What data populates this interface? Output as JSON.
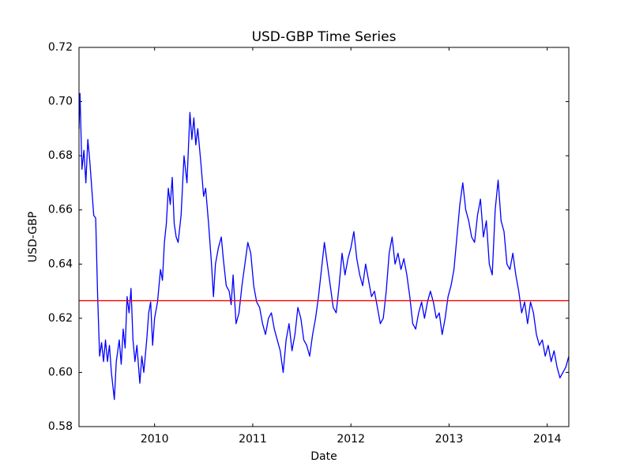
{
  "chart_data": {
    "type": "line",
    "title": "USD-GBP Time Series",
    "x_label": "Date",
    "y_label": "USD-GBP",
    "x": [
      2009.23,
      2009.24,
      2009.26,
      2009.28,
      2009.3,
      2009.32,
      2009.34,
      2009.36,
      2009.38,
      2009.4,
      2009.42,
      2009.44,
      2009.46,
      2009.48,
      2009.5,
      2009.52,
      2009.54,
      2009.56,
      2009.59,
      2009.61,
      2009.64,
      2009.66,
      2009.68,
      2009.7,
      2009.72,
      2009.74,
      2009.76,
      2009.78,
      2009.8,
      2009.82,
      2009.85,
      2009.87,
      2009.89,
      2009.92,
      2009.94,
      2009.96,
      2009.98,
      2010.0,
      2010.03,
      2010.06,
      2010.08,
      2010.1,
      2010.12,
      2010.14,
      2010.16,
      2010.18,
      2010.2,
      2010.22,
      2010.24,
      2010.27,
      2010.3,
      2010.33,
      2010.36,
      2010.38,
      2010.4,
      2010.42,
      2010.44,
      2010.47,
      2010.5,
      2010.52,
      2010.55,
      2010.58,
      2010.6,
      2010.62,
      2010.65,
      2010.68,
      2010.7,
      2010.73,
      2010.76,
      2010.78,
      2010.8,
      2010.83,
      2010.86,
      2010.89,
      2010.92,
      2010.95,
      2010.98,
      2011.01,
      2011.04,
      2011.07,
      2011.1,
      2011.13,
      2011.16,
      2011.19,
      2011.22,
      2011.25,
      2011.28,
      2011.31,
      2011.34,
      2011.37,
      2011.4,
      2011.43,
      2011.46,
      2011.49,
      2011.52,
      2011.55,
      2011.58,
      2011.61,
      2011.64,
      2011.67,
      2011.7,
      2011.73,
      2011.76,
      2011.79,
      2011.82,
      2011.85,
      2011.88,
      2011.91,
      2011.94,
      2011.97,
      2012.0,
      2012.03,
      2012.06,
      2012.09,
      2012.12,
      2012.15,
      2012.18,
      2012.21,
      2012.24,
      2012.27,
      2012.3,
      2012.33,
      2012.36,
      2012.39,
      2012.42,
      2012.45,
      2012.48,
      2012.51,
      2012.54,
      2012.57,
      2012.6,
      2012.63,
      2012.66,
      2012.69,
      2012.72,
      2012.75,
      2012.78,
      2012.81,
      2012.84,
      2012.87,
      2012.9,
      2012.93,
      2012.96,
      2012.99,
      2013.02,
      2013.05,
      2013.08,
      2013.11,
      2013.14,
      2013.17,
      2013.2,
      2013.23,
      2013.26,
      2013.29,
      2013.32,
      2013.35,
      2013.38,
      2013.41,
      2013.44,
      2013.47,
      2013.5,
      2013.53,
      2013.56,
      2013.59,
      2013.62,
      2013.65,
      2013.68,
      2013.71,
      2013.74,
      2013.77,
      2013.8,
      2013.83,
      2013.86,
      2013.89,
      2013.92,
      2013.95,
      2013.98,
      2014.01,
      2014.04,
      2014.07,
      2014.1,
      2014.13,
      2014.16,
      2014.19,
      2014.22
    ],
    "series": [
      {
        "name": "USD-GBP",
        "color": "#0000ff",
        "values": [
          0.69,
          0.703,
          0.675,
          0.682,
          0.67,
          0.686,
          0.678,
          0.668,
          0.658,
          0.657,
          0.628,
          0.606,
          0.611,
          0.604,
          0.612,
          0.604,
          0.61,
          0.6,
          0.59,
          0.604,
          0.612,
          0.603,
          0.616,
          0.609,
          0.628,
          0.622,
          0.631,
          0.612,
          0.604,
          0.61,
          0.596,
          0.606,
          0.6,
          0.612,
          0.622,
          0.626,
          0.61,
          0.62,
          0.626,
          0.638,
          0.634,
          0.648,
          0.655,
          0.668,
          0.662,
          0.672,
          0.655,
          0.65,
          0.648,
          0.658,
          0.68,
          0.67,
          0.696,
          0.686,
          0.694,
          0.684,
          0.69,
          0.678,
          0.665,
          0.668,
          0.655,
          0.64,
          0.628,
          0.64,
          0.646,
          0.65,
          0.642,
          0.632,
          0.63,
          0.625,
          0.636,
          0.618,
          0.622,
          0.632,
          0.64,
          0.648,
          0.644,
          0.632,
          0.626,
          0.624,
          0.618,
          0.614,
          0.62,
          0.622,
          0.616,
          0.612,
          0.608,
          0.6,
          0.612,
          0.618,
          0.608,
          0.614,
          0.624,
          0.62,
          0.612,
          0.61,
          0.606,
          0.614,
          0.62,
          0.628,
          0.638,
          0.648,
          0.64,
          0.632,
          0.624,
          0.622,
          0.632,
          0.644,
          0.636,
          0.642,
          0.646,
          0.652,
          0.642,
          0.636,
          0.632,
          0.64,
          0.634,
          0.628,
          0.63,
          0.624,
          0.618,
          0.62,
          0.63,
          0.644,
          0.65,
          0.64,
          0.644,
          0.638,
          0.642,
          0.636,
          0.628,
          0.618,
          0.616,
          0.622,
          0.626,
          0.62,
          0.626,
          0.63,
          0.626,
          0.62,
          0.622,
          0.614,
          0.62,
          0.628,
          0.632,
          0.638,
          0.65,
          0.662,
          0.67,
          0.66,
          0.656,
          0.65,
          0.648,
          0.658,
          0.664,
          0.65,
          0.656,
          0.64,
          0.636,
          0.66,
          0.671,
          0.656,
          0.652,
          0.64,
          0.638,
          0.644,
          0.636,
          0.63,
          0.622,
          0.626,
          0.618,
          0.626,
          0.622,
          0.614,
          0.61,
          0.612,
          0.606,
          0.61,
          0.604,
          0.608,
          0.602,
          0.598,
          0.6,
          0.602,
          0.606
        ]
      }
    ],
    "reference_line": {
      "value": 0.6265,
      "color": "#ff0000"
    },
    "xlim": [
      2009.23,
      2014.22
    ],
    "xticks": [
      2010,
      2011,
      2012,
      2013,
      2014
    ],
    "ylim": [
      0.58,
      0.72
    ],
    "yticks": [
      0.58,
      {
        "value": 0.6,
        "label": "0.60"
      },
      0.62,
      0.64,
      0.66,
      0.68,
      {
        "value": 0.7,
        "label": "0.70"
      },
      0.72
    ]
  }
}
